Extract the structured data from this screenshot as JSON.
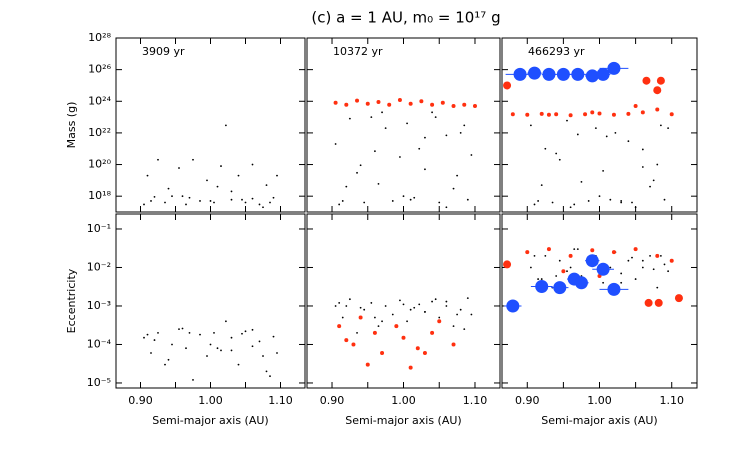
{
  "chart_data": [
    {
      "type": "scatter",
      "title": "(c) a = 1 AU, m₀ = 10¹⁷ g",
      "annotation": "3909 yr",
      "ylabel": "Mass (g)",
      "log_y": true,
      "xlim": [
        0.865,
        1.135
      ],
      "xticks": [
        0.9,
        0.95,
        1,
        1.05,
        1.1
      ],
      "ylim": [
        1e+17,
        1e+28
      ],
      "yticks": [
        {
          "value": 1e+18,
          "label": "10¹⁸"
        },
        {
          "value": 1e+20,
          "label": "10²⁰"
        },
        {
          "value": 1e+22,
          "label": "10²²"
        },
        {
          "value": 1e+24,
          "label": "10²⁴"
        },
        {
          "value": 1e+26,
          "label": "10²⁶"
        },
        {
          "value": 1e+28,
          "label": "10²⁸"
        }
      ],
      "series": [
        {
          "color": "#000000",
          "marker": "dot",
          "x": [
            0.905,
            0.915,
            0.925,
            0.935,
            0.945,
            0.955,
            0.965,
            0.975,
            0.985,
            0.995,
            1.005,
            1.015,
            1.022,
            1.03,
            1.04,
            1.05,
            1.06,
            1.07,
            1.08,
            1.09,
            1.095,
            0.91,
            0.94,
            0.97,
            1.0,
            1.03,
            1.06,
            1.085,
            0.92,
            0.96,
            1.01,
            1.045,
            1.075
          ],
          "values": [
            3e+17,
            5e+17,
            2e+20,
            4e+17,
            1e+18,
            6e+19,
            3e+17,
            2e+20,
            5e+17,
            1e+19,
            4e+17,
            8e+19,
            3e+22,
            6e+17,
            2e+19,
            4e+17,
            1e+20,
            3e+17,
            5e+18,
            8e+17,
            2e+19,
            2e+19,
            3e+18,
            8e+17,
            5e+17,
            2e+18,
            7e+17,
            4e+17,
            9e+17,
            1e+18,
            4e+18,
            6e+17,
            2e+17
          ]
        }
      ]
    },
    {
      "type": "scatter",
      "annotation": "10372 yr",
      "log_y": true,
      "xlim": [
        0.865,
        1.135
      ],
      "xticks": [
        0.9,
        0.95,
        1,
        1.05,
        1.1
      ],
      "ylim": [
        1e+17,
        1e+28
      ],
      "yticks": [
        1e+18,
        1e+20,
        1e+22,
        1e+24,
        1e+26,
        1e+28
      ],
      "series": [
        {
          "color": "#000000",
          "marker": "dot",
          "x": [
            0.905,
            0.915,
            0.925,
            0.935,
            0.945,
            0.955,
            0.965,
            0.975,
            0.985,
            0.995,
            1.005,
            1.015,
            1.022,
            1.03,
            1.04,
            1.05,
            1.06,
            1.07,
            1.08,
            1.09,
            1.095,
            0.91,
            0.94,
            0.97,
            1.0,
            1.03,
            1.06,
            1.085,
            0.92,
            0.96,
            1.01,
            1.045,
            1.075
          ],
          "values": [
            2e+21,
            5e+17,
            8e+22,
            3e+19,
            4e+17,
            1e+23,
            6e+18,
            2e+22,
            5e+17,
            3e+20,
            4e+22,
            8e+17,
            1e+21,
            5e+19,
            2e+23,
            4e+17,
            7e+21,
            3e+18,
            1e+22,
            6e+17,
            4e+20,
            3e+17,
            9e+19,
            2e+23,
            1e+18,
            5e+21,
            2e+17,
            3e+22,
            4e+18,
            7e+20,
            6e+17,
            1e+23,
            2e+19
          ]
        },
        {
          "color": "#ff3010",
          "marker": "small",
          "x": [
            0.905,
            0.92,
            0.935,
            0.95,
            0.965,
            0.98,
            0.995,
            1.01,
            1.025,
            1.04,
            1.055,
            1.07,
            1.085,
            1.1
          ],
          "values": [
            8e+23,
            6e+23,
            1.1e+24,
            7e+23,
            9e+23,
            6e+23,
            1.2e+24,
            7e+23,
            1e+24,
            6e+23,
            8e+23,
            5e+23,
            6e+23,
            5e+23
          ]
        }
      ]
    },
    {
      "type": "scatter",
      "annotation": "466293 yr",
      "log_y": true,
      "xlim": [
        0.865,
        1.135
      ],
      "xticks": [
        0.9,
        0.95,
        1,
        1.05,
        1.1
      ],
      "ylim": [
        1e+17,
        1e+28
      ],
      "yticks": [
        1e+18,
        1e+20,
        1e+22,
        1e+24,
        1e+26,
        1e+28
      ],
      "series": [
        {
          "color": "#000000",
          "marker": "dot",
          "x": [
            0.905,
            0.915,
            0.925,
            0.935,
            0.945,
            0.955,
            0.965,
            0.975,
            0.985,
            0.995,
            1.005,
            1.015,
            1.022,
            1.03,
            1.04,
            1.05,
            1.06,
            1.07,
            1.08,
            1.09,
            1.095,
            0.91,
            0.94,
            0.97,
            1.0,
            1.03,
            1.06,
            1.085,
            0.92,
            0.96,
            1.01,
            1.045,
            1.075
          ],
          "values": [
            3e+22,
            5e+17,
            1e+21,
            4e+17,
            2e+20,
            6e+22,
            3e+17,
            8e+18,
            5e+17,
            2e+22,
            4e+19,
            6e+17,
            1e+22,
            5e+17,
            3e+21,
            2e+17,
            7e+19,
            4e+18,
            1e+20,
            6e+17,
            2e+22,
            3e+17,
            5e+20,
            8e+21,
            1e+18,
            4e+17,
            9e+20,
            3e+22,
            5e+18,
            2e+17,
            6e+21,
            4e+17,
            1e+19
          ]
        },
        {
          "color": "#ff3010",
          "marker": "small",
          "x": [
            0.88,
            0.9,
            0.92,
            0.94,
            0.96,
            0.98,
            1.0,
            1.02,
            1.04,
            1.06,
            1.08,
            1.1,
            0.93,
            0.99,
            1.05
          ],
          "values": [
            1.5e+23,
            1.4e+23,
            1.6e+23,
            1.5e+23,
            1.3e+23,
            1.5e+23,
            1.7e+23,
            1.4e+23,
            1.6e+23,
            2e+23,
            3e+23,
            1.5e+23,
            1.4e+23,
            2e+23,
            5e+23
          ]
        },
        {
          "color": "#ff3010",
          "marker": "large",
          "x": [
            0.872,
            1.065,
            1.085,
            1.08
          ],
          "values": [
            1e+25,
            2e+25,
            2e+25,
            5e+24
          ]
        },
        {
          "color": "#1f4fff",
          "marker": "huge",
          "x": [
            0.89,
            0.91,
            0.93,
            0.95,
            0.97,
            0.99,
            1.005,
            1.02
          ],
          "values": [
            5e+25,
            6e+25,
            5e+25,
            5e+25,
            5e+25,
            4e+25,
            5e+25,
            1.2e+26
          ],
          "xerr": [
            0.02,
            0.01,
            0.01,
            0.012,
            0.015,
            0.01,
            0.01,
            0.02
          ]
        }
      ]
    },
    {
      "type": "scatter",
      "ylabel": "Eccentricity",
      "xlabel": "Semi-major axis (AU)",
      "log_y": true,
      "xlim": [
        0.865,
        1.135
      ],
      "xticks": [
        {
          "value": 0.9,
          "label": "0.90"
        },
        0.95,
        {
          "value": 1,
          "label": "1.00"
        },
        1.05,
        {
          "value": 1.1,
          "label": "1.10"
        }
      ],
      "ylim": [
        7.4e-06,
        0.245
      ],
      "yticks": [
        {
          "value": 1e-05,
          "label": "10⁻⁵"
        },
        {
          "value": 0.0001,
          "label": "10⁻⁴"
        },
        {
          "value": 0.001,
          "label": "10⁻³"
        },
        {
          "value": 0.01,
          "label": "10⁻²"
        },
        {
          "value": 0.1,
          "label": "10⁻¹"
        }
      ],
      "series": [
        {
          "color": "#000000",
          "marker": "dot",
          "x": [
            0.905,
            0.915,
            0.925,
            0.935,
            0.945,
            0.955,
            0.965,
            0.975,
            0.985,
            0.995,
            1.005,
            1.015,
            1.022,
            1.03,
            1.04,
            1.05,
            1.06,
            1.07,
            1.08,
            1.09,
            1.095,
            0.91,
            0.94,
            0.97,
            1.0,
            1.03,
            1.06,
            1.085,
            0.92,
            0.96,
            1.01,
            1.045,
            1.075
          ],
          "values": [
            0.00015,
            6e-05,
            0.0002,
            3e-05,
            0.0001,
            0.00025,
            8e-05,
            1.2e-05,
            0.00018,
            5e-05,
            0.0002,
            7e-05,
            0.0004,
            0.00015,
            3e-05,
            0.00022,
            9e-05,
            0.00012,
            2e-05,
            0.00016,
            6e-05,
            0.00018,
            4e-05,
            0.0002,
            0.0001,
            7e-05,
            0.00024,
            1.5e-05,
            0.00013,
            0.00026,
            8e-05,
            0.00019,
            5e-05
          ]
        }
      ]
    },
    {
      "type": "scatter",
      "xlabel": "Semi-major axis (AU)",
      "log_y": true,
      "xlim": [
        0.865,
        1.135
      ],
      "xticks": [
        {
          "value": 0.9,
          "label": "0.90"
        },
        0.95,
        {
          "value": 1,
          "label": "1.00"
        },
        1.05,
        {
          "value": 1.1,
          "label": "1.10"
        }
      ],
      "ylim": [
        7.4e-06,
        0.245
      ],
      "yticks": [
        1e-05,
        0.0001,
        0.001,
        0.01,
        0.1
      ],
      "series": [
        {
          "color": "#000000",
          "marker": "dot",
          "x": [
            0.905,
            0.915,
            0.925,
            0.935,
            0.945,
            0.955,
            0.965,
            0.975,
            0.985,
            0.995,
            1.005,
            1.015,
            1.022,
            1.03,
            1.04,
            1.05,
            1.06,
            1.07,
            1.08,
            1.09,
            1.095,
            0.91,
            0.94,
            0.97,
            1.0,
            1.03,
            1.06,
            1.085,
            0.92,
            0.96,
            1.01,
            1.045,
            1.075
          ],
          "values": [
            0.001,
            0.0005,
            0.0015,
            0.0002,
            0.0008,
            0.0012,
            0.0003,
            0.001,
            0.0006,
            0.0014,
            0.0004,
            0.0009,
            0.0011,
            0.0007,
            0.0013,
            0.0005,
            0.001,
            0.0003,
            0.0008,
            0.0016,
            0.0006,
            0.0012,
            0.0009,
            0.0004,
            0.0011,
            0.0007,
            0.0013,
            0.00025,
            0.001,
            0.0005,
            0.0008,
            0.0015,
            0.0006
          ]
        },
        {
          "color": "#ff3010",
          "marker": "small",
          "x": [
            0.91,
            0.93,
            0.94,
            0.96,
            0.97,
            0.99,
            1.0,
            1.02,
            1.04,
            1.05,
            1.07,
            0.95,
            1.01,
            0.92,
            1.03
          ],
          "values": [
            0.0003,
            0.0001,
            0.0005,
            0.0002,
            6e-05,
            0.0003,
            0.00015,
            8e-05,
            0.0002,
            0.0004,
            0.0001,
            3e-05,
            2.5e-05,
            0.00013,
            6e-05
          ]
        }
      ]
    },
    {
      "type": "scatter",
      "xlabel": "Semi-major axis (AU)",
      "log_y": true,
      "xlim": [
        0.865,
        1.135
      ],
      "xticks": [
        {
          "value": 0.9,
          "label": "0.90"
        },
        0.95,
        {
          "value": 1,
          "label": "1.00"
        },
        1.05,
        {
          "value": 1.1,
          "label": "1.10"
        }
      ],
      "ylim": [
        7.4e-06,
        0.245
      ],
      "yticks": [
        1e-05,
        0.0001,
        0.001,
        0.01,
        0.1
      ],
      "series": [
        {
          "color": "#000000",
          "marker": "dot",
          "x": [
            0.905,
            0.915,
            0.925,
            0.935,
            0.945,
            0.955,
            0.965,
            0.975,
            0.985,
            0.995,
            1.005,
            1.015,
            1.022,
            1.03,
            1.04,
            1.05,
            1.06,
            1.07,
            1.08,
            1.09,
            1.095,
            0.91,
            0.94,
            0.97,
            1.0,
            1.03,
            1.06,
            1.085,
            0.92,
            0.96,
            1.01,
            1.045,
            1.075
          ],
          "values": [
            0.01,
            0.005,
            0.02,
            0.003,
            0.015,
            0.008,
            0.03,
            0.006,
            0.012,
            0.02,
            0.004,
            0.01,
            0.025,
            0.007,
            0.015,
            0.005,
            0.01,
            0.02,
            0.003,
            0.012,
            0.008,
            0.02,
            0.006,
            0.03,
            0.01,
            0.004,
            0.015,
            0.02,
            0.005,
            0.01,
            0.007,
            0.018,
            0.009
          ]
        },
        {
          "color": "#ff3010",
          "marker": "small",
          "x": [
            0.9,
            0.93,
            0.96,
            0.99,
            1.02,
            1.05,
            1.08,
            1.1,
            0.95,
            1.0
          ],
          "values": [
            0.025,
            0.03,
            0.02,
            0.028,
            0.025,
            0.03,
            0.02,
            0.015,
            0.008,
            0.006
          ]
        },
        {
          "color": "#ff3010",
          "marker": "large",
          "x": [
            0.872,
            1.068,
            1.082,
            1.11
          ],
          "values": [
            0.012,
            0.0012,
            0.0012,
            0.0016
          ]
        },
        {
          "color": "#1f4fff",
          "marker": "huge",
          "x": [
            0.88,
            0.92,
            0.945,
            0.965,
            0.975,
            0.99,
            1.005,
            1.02
          ],
          "values": [
            0.001,
            0.0032,
            0.003,
            0.005,
            0.004,
            0.015,
            0.009,
            0.0027
          ],
          "xerr": [
            0.012,
            0.015,
            0.012,
            0.01,
            0.01,
            0.01,
            0.015,
            0.02
          ]
        }
      ]
    }
  ]
}
